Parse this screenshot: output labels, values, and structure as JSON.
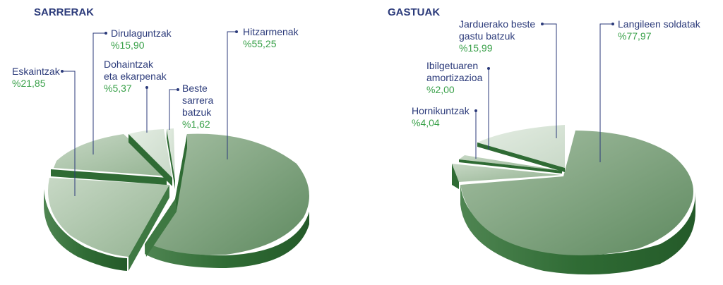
{
  "chart_data": [
    {
      "type": "pie",
      "title": "SARRERAK",
      "slices": [
        {
          "name": "Hitzarmenak",
          "value": 55.25,
          "label": "%55,25"
        },
        {
          "name": "Eskaintzak",
          "value": 21.85,
          "label": "%21,85"
        },
        {
          "name": "Dirulaguntzak",
          "value": 15.9,
          "label": "%15,90"
        },
        {
          "name": "Dohaintzak eta ekarpenak",
          "value": 5.37,
          "label": "%5,37"
        },
        {
          "name": "Beste sarrera batzuk",
          "value": 1.62,
          "label": "%1,62"
        }
      ]
    },
    {
      "type": "pie",
      "title": "GASTUAK",
      "slices": [
        {
          "name": "Langileen soldatak",
          "value": 77.97,
          "label": "%77,97"
        },
        {
          "name": "Hornikuntzak",
          "value": 4.04,
          "label": "%4,04"
        },
        {
          "name": "Ibilgetuaren amortizazioa",
          "value": 2.0,
          "label": "%2,00"
        },
        {
          "name": "Jarduerako beste gastu batzuk",
          "value": 15.99,
          "label": "%15,99"
        }
      ]
    }
  ],
  "colors": {
    "title": "#2b3a7a",
    "label": "#2b3a7a",
    "percent": "#3aa14a",
    "pie_top_main": "#7a9e7a",
    "pie_side": "#2f6b34"
  },
  "labels": {
    "left": {
      "title": "SARRERAK",
      "hitzarmenak_1": "Hitzarmenak",
      "hitzarmenak_pct": "%55,25",
      "eskaintzak_1": "Eskaintzak",
      "eskaintzak_pct": "%21,85",
      "dirulaguntzak_1": "Dirulaguntzak",
      "dirulaguntzak_pct": "%15,90",
      "dohaintzak_1": "Dohaintzak",
      "dohaintzak_2": "eta ekarpenak",
      "dohaintzak_pct": "%5,37",
      "beste_1": "Beste",
      "beste_2": "sarrera",
      "beste_3": "batzuk",
      "beste_pct": "%1,62"
    },
    "right": {
      "title": "GASTUAK",
      "soldatak_1": "Langileen soldatak",
      "soldatak_pct": "%77,97",
      "jarduerako_1": "Jarduerako beste",
      "jarduerako_2": "gastu batzuk",
      "jarduerako_pct": "%15,99",
      "ibilgetuaren_1": "Ibilgetuaren",
      "ibilgetuaren_2": "amortizazioa",
      "ibilgetuaren_pct": "%2,00",
      "hornikuntzak_1": "Hornikuntzak",
      "hornikuntzak_pct": "%4,04"
    }
  }
}
